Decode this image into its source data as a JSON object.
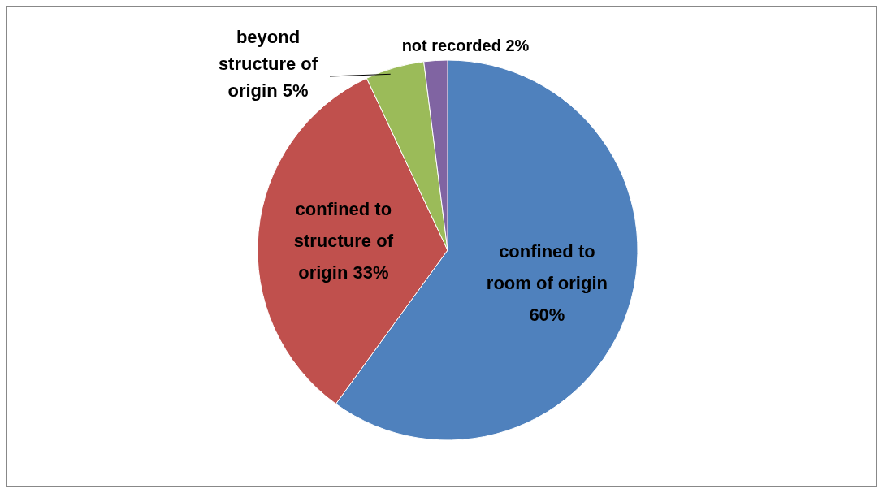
{
  "chart_data": {
    "type": "pie",
    "categories": [
      "confined to room of origin",
      "confined to structure of origin",
      "beyond structure of origin",
      "not recorded"
    ],
    "values": [
      60,
      33,
      5,
      2
    ],
    "value_labels": [
      "60%",
      "33%",
      "5%",
      "2%"
    ],
    "colors": [
      "#4f81bd",
      "#c0504d",
      "#9bbb59",
      "#8064a2"
    ]
  }
}
